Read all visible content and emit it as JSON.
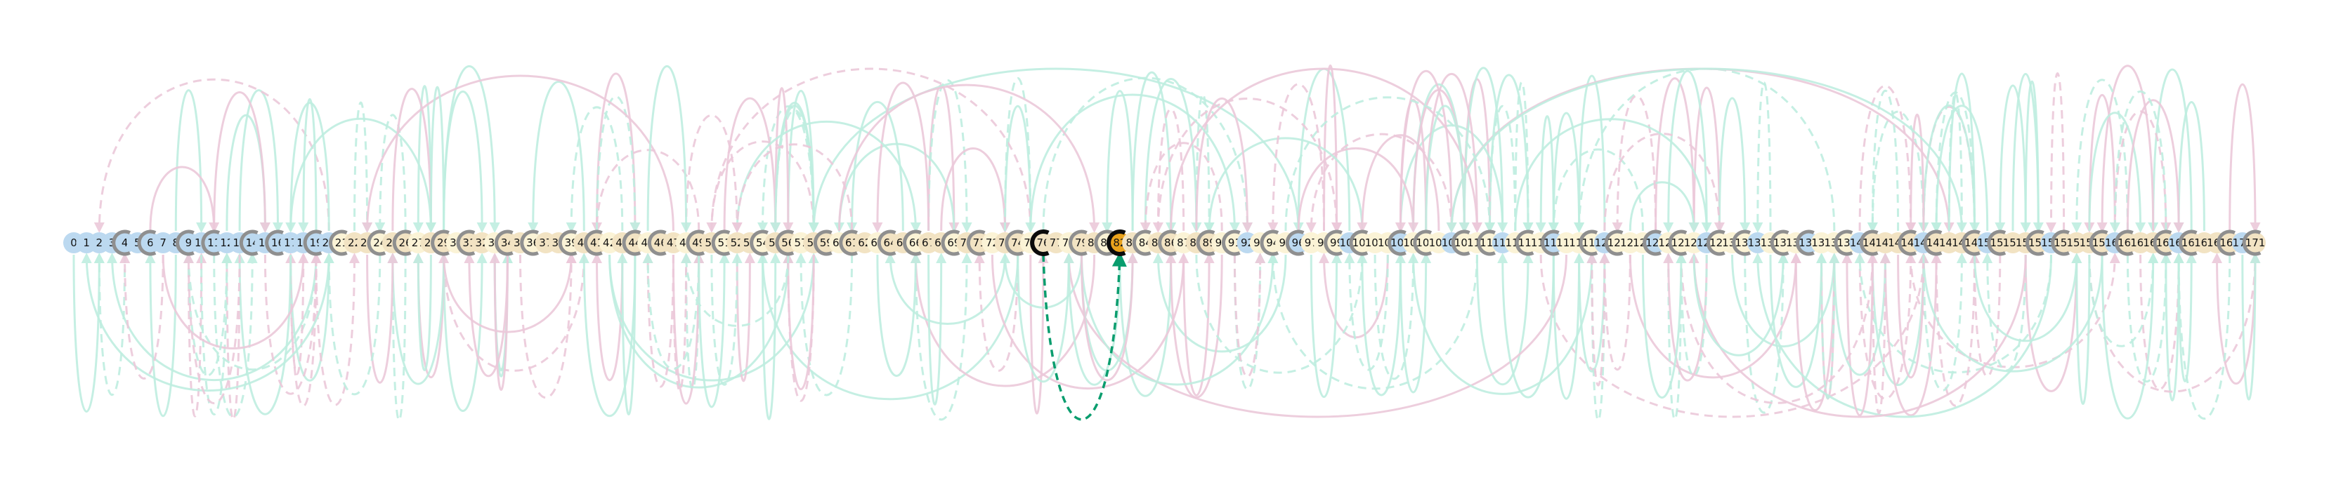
{
  "diagram": {
    "node_labels": [
      "0",
      "1",
      "2",
      "3",
      "4",
      "5",
      "6",
      "7",
      "8",
      "9",
      "10",
      "11",
      "12",
      "13",
      "14",
      "15",
      "16",
      "17",
      "18",
      "19",
      "20",
      "21",
      "22",
      "23",
      "24",
      "25",
      "26",
      "27",
      "28",
      "29",
      "30",
      "31",
      "32",
      "33",
      "34",
      "35",
      "36",
      "37",
      "38",
      "39",
      "40",
      "41",
      "42",
      "43",
      "44",
      "45",
      "46",
      "47",
      "48",
      "49",
      "50",
      "51",
      "52",
      "53",
      "54",
      "55",
      "56",
      "57",
      "58",
      "59",
      "60",
      "61",
      "62",
      "63",
      "64",
      "65",
      "66",
      "67",
      "68",
      "69",
      "70",
      "71",
      "72",
      "73",
      "74",
      "75",
      "76",
      "77",
      "78",
      "79",
      "80",
      "81",
      "82",
      "83",
      "84",
      "85",
      "86",
      "87",
      "88",
      "89",
      "90",
      "91",
      "92",
      "93",
      "94",
      "95",
      "96",
      "97",
      "98",
      "99",
      "100",
      "101",
      "102",
      "103",
      "104",
      "105",
      "106",
      "107",
      "108",
      "109",
      "110",
      "111",
      "112",
      "113",
      "114",
      "115",
      "116",
      "117",
      "118",
      "119",
      "120",
      "121",
      "122",
      "123",
      "124",
      "125",
      "126",
      "127",
      "128",
      "129",
      "130",
      "131",
      "132",
      "133",
      "134",
      "135",
      "136",
      "137",
      "138",
      "139",
      "140",
      "141",
      "142",
      "143",
      "144",
      "145",
      "146",
      "147",
      "148",
      "149",
      "150",
      "151",
      "152",
      "153",
      "154",
      "155",
      "156",
      "157",
      "158",
      "159",
      "160",
      "161",
      "162",
      "163",
      "164",
      "165",
      "166",
      "167",
      "168",
      "169",
      "170",
      "171"
    ],
    "highlighted_nodes": [
      "76",
      "82"
    ],
    "highlighted_edge": {
      "from": "76",
      "to": "82",
      "style": "dashed"
    },
    "colors": {
      "teal_edge": "#bfeee0",
      "pink_edge": "#ecc9da",
      "highlight_edge": "#0a9d6e",
      "node_blue": "#bcd9f0",
      "node_beige": "#f2e3c3",
      "node_cream": "#fbf3d6",
      "node_gray_ring": "#8f8f8f",
      "highlight_ring": "#0b0b0b",
      "highlight_fill_orange": "#e9a21c"
    }
  }
}
